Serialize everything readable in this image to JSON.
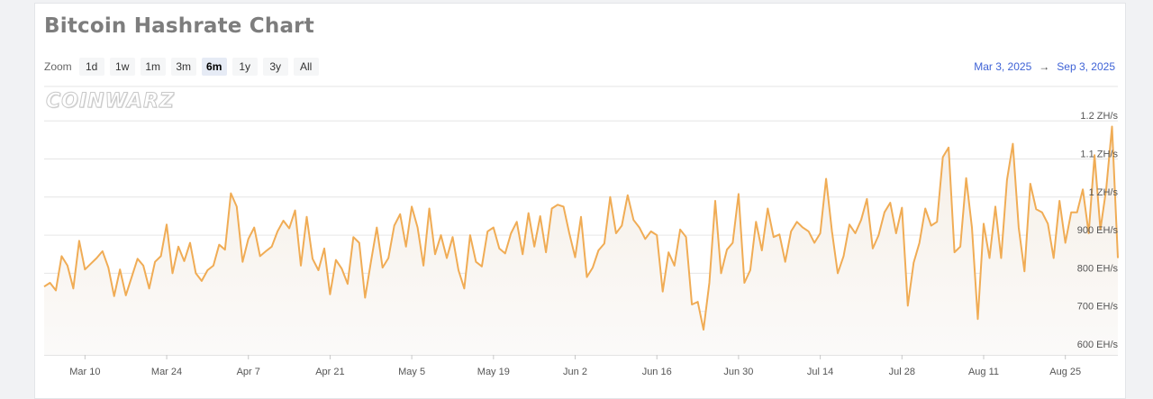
{
  "page": {
    "title": "Bitcoin Hashrate Chart",
    "zoom_label": "Zoom",
    "zoom_options": [
      "1d",
      "1w",
      "1m",
      "3m",
      "6m",
      "1y",
      "3y",
      "All"
    ],
    "zoom_selected": "6m",
    "range_from": "Mar 3, 2025",
    "range_arrow": "→",
    "range_to": "Sep 3, 2025",
    "watermark": "COINWARZ"
  },
  "colors": {
    "line": "#f0ac55",
    "area_top": "#f4eee6",
    "grid": "#e6e6e6",
    "range_text": "#3f63d6"
  },
  "chart_data": {
    "type": "area",
    "title": "Bitcoin Hashrate Chart",
    "x_start": "2025-03-03",
    "x_end": "2025-09-03",
    "xlabel": "",
    "ylabel": "",
    "ylim": [
      600,
      1200
    ],
    "y_ticks": [
      {
        "value": 600,
        "label": "600 EH/s"
      },
      {
        "value": 700,
        "label": "700 EH/s"
      },
      {
        "value": 800,
        "label": "800 EH/s"
      },
      {
        "value": 900,
        "label": "900 EH/s"
      },
      {
        "value": 1000,
        "label": "1 ZH/s"
      },
      {
        "value": 1100,
        "label": "1.1 ZH/s"
      },
      {
        "value": 1200,
        "label": "1.2 ZH/s"
      }
    ],
    "x_ticks": [
      {
        "date": "2025-03-10",
        "label": "Mar 10"
      },
      {
        "date": "2025-03-24",
        "label": "Mar 24"
      },
      {
        "date": "2025-04-07",
        "label": "Apr 7"
      },
      {
        "date": "2025-04-21",
        "label": "Apr 21"
      },
      {
        "date": "2025-05-05",
        "label": "May 5"
      },
      {
        "date": "2025-05-19",
        "label": "May 19"
      },
      {
        "date": "2025-06-02",
        "label": "Jun 2"
      },
      {
        "date": "2025-06-16",
        "label": "Jun 16"
      },
      {
        "date": "2025-06-30",
        "label": "Jun 30"
      },
      {
        "date": "2025-07-14",
        "label": "Jul 14"
      },
      {
        "date": "2025-07-28",
        "label": "Jul 28"
      },
      {
        "date": "2025-08-11",
        "label": "Aug 11"
      },
      {
        "date": "2025-08-25",
        "label": "Aug 25"
      }
    ],
    "grid": true,
    "series": [
      {
        "points": [
          [
            "2025-03-03",
            765
          ],
          [
            "2025-03-04",
            775
          ],
          [
            "2025-03-05",
            755
          ],
          [
            "2025-03-06",
            845
          ],
          [
            "2025-03-07",
            820
          ],
          [
            "2025-03-08",
            760
          ],
          [
            "2025-03-09",
            885
          ],
          [
            "2025-03-10",
            810
          ],
          [
            "2025-03-11",
            825
          ],
          [
            "2025-03-12",
            840
          ],
          [
            "2025-03-13",
            858
          ],
          [
            "2025-03-14",
            815
          ],
          [
            "2025-03-15",
            740
          ],
          [
            "2025-03-16",
            810
          ],
          [
            "2025-03-17",
            742
          ],
          [
            "2025-03-18",
            790
          ],
          [
            "2025-03-19",
            838
          ],
          [
            "2025-03-20",
            820
          ],
          [
            "2025-03-21",
            760
          ],
          [
            "2025-03-22",
            830
          ],
          [
            "2025-03-23",
            845
          ],
          [
            "2025-03-24",
            928
          ],
          [
            "2025-03-25",
            800
          ],
          [
            "2025-03-26",
            870
          ],
          [
            "2025-03-27",
            832
          ],
          [
            "2025-03-28",
            880
          ],
          [
            "2025-03-29",
            800
          ],
          [
            "2025-03-30",
            780
          ],
          [
            "2025-03-31",
            808
          ],
          [
            "2025-04-01",
            820
          ],
          [
            "2025-04-02",
            875
          ],
          [
            "2025-04-03",
            862
          ],
          [
            "2025-04-04",
            1010
          ],
          [
            "2025-04-05",
            975
          ],
          [
            "2025-04-06",
            830
          ],
          [
            "2025-04-07",
            890
          ],
          [
            "2025-04-08",
            920
          ],
          [
            "2025-04-09",
            845
          ],
          [
            "2025-04-10",
            858
          ],
          [
            "2025-04-11",
            870
          ],
          [
            "2025-04-12",
            910
          ],
          [
            "2025-04-13",
            938
          ],
          [
            "2025-04-14",
            918
          ],
          [
            "2025-04-15",
            965
          ],
          [
            "2025-04-16",
            820
          ],
          [
            "2025-04-17",
            948
          ],
          [
            "2025-04-18",
            838
          ],
          [
            "2025-04-19",
            808
          ],
          [
            "2025-04-20",
            865
          ],
          [
            "2025-04-21",
            745
          ],
          [
            "2025-04-22",
            835
          ],
          [
            "2025-04-23",
            812
          ],
          [
            "2025-04-24",
            772
          ],
          [
            "2025-04-25",
            895
          ],
          [
            "2025-04-26",
            880
          ],
          [
            "2025-04-27",
            736
          ],
          [
            "2025-04-28",
            830
          ],
          [
            "2025-04-29",
            920
          ],
          [
            "2025-04-30",
            815
          ],
          [
            "2025-05-01",
            840
          ],
          [
            "2025-05-02",
            925
          ],
          [
            "2025-05-03",
            955
          ],
          [
            "2025-05-04",
            870
          ],
          [
            "2025-05-05",
            975
          ],
          [
            "2025-05-06",
            920
          ],
          [
            "2025-05-07",
            820
          ],
          [
            "2025-05-08",
            970
          ],
          [
            "2025-05-09",
            850
          ],
          [
            "2025-05-10",
            900
          ],
          [
            "2025-05-11",
            840
          ],
          [
            "2025-05-12",
            895
          ],
          [
            "2025-05-13",
            808
          ],
          [
            "2025-05-14",
            760
          ],
          [
            "2025-05-15",
            900
          ],
          [
            "2025-05-16",
            830
          ],
          [
            "2025-05-17",
            818
          ],
          [
            "2025-05-18",
            910
          ],
          [
            "2025-05-19",
            920
          ],
          [
            "2025-05-20",
            865
          ],
          [
            "2025-05-21",
            852
          ],
          [
            "2025-05-22",
            905
          ],
          [
            "2025-05-23",
            935
          ],
          [
            "2025-05-24",
            850
          ],
          [
            "2025-05-25",
            958
          ],
          [
            "2025-05-26",
            870
          ],
          [
            "2025-05-27",
            950
          ],
          [
            "2025-05-28",
            855
          ],
          [
            "2025-05-29",
            970
          ],
          [
            "2025-05-30",
            980
          ],
          [
            "2025-05-31",
            975
          ],
          [
            "2025-06-01",
            905
          ],
          [
            "2025-06-02",
            842
          ],
          [
            "2025-06-03",
            948
          ],
          [
            "2025-06-04",
            790
          ],
          [
            "2025-06-05",
            815
          ],
          [
            "2025-06-06",
            860
          ],
          [
            "2025-06-07",
            878
          ],
          [
            "2025-06-08",
            1000
          ],
          [
            "2025-06-09",
            905
          ],
          [
            "2025-06-10",
            925
          ],
          [
            "2025-06-11",
            1005
          ],
          [
            "2025-06-12",
            940
          ],
          [
            "2025-06-13",
            920
          ],
          [
            "2025-06-14",
            890
          ],
          [
            "2025-06-15",
            910
          ],
          [
            "2025-06-16",
            900
          ],
          [
            "2025-06-17",
            752
          ],
          [
            "2025-06-18",
            855
          ],
          [
            "2025-06-19",
            820
          ],
          [
            "2025-06-20",
            915
          ],
          [
            "2025-06-21",
            895
          ],
          [
            "2025-06-22",
            718
          ],
          [
            "2025-06-23",
            725
          ],
          [
            "2025-06-24",
            652
          ],
          [
            "2025-06-25",
            775
          ],
          [
            "2025-06-26",
            990
          ],
          [
            "2025-06-27",
            800
          ],
          [
            "2025-06-28",
            862
          ],
          [
            "2025-06-29",
            880
          ],
          [
            "2025-06-30",
            1008
          ],
          [
            "2025-07-01",
            775
          ],
          [
            "2025-07-02",
            808
          ],
          [
            "2025-07-03",
            935
          ],
          [
            "2025-07-04",
            860
          ],
          [
            "2025-07-05",
            970
          ],
          [
            "2025-07-06",
            895
          ],
          [
            "2025-07-07",
            902
          ],
          [
            "2025-07-08",
            830
          ],
          [
            "2025-07-09",
            910
          ],
          [
            "2025-07-10",
            935
          ],
          [
            "2025-07-11",
            920
          ],
          [
            "2025-07-12",
            910
          ],
          [
            "2025-07-13",
            880
          ],
          [
            "2025-07-14",
            905
          ],
          [
            "2025-07-15",
            1048
          ],
          [
            "2025-07-16",
            910
          ],
          [
            "2025-07-17",
            800
          ],
          [
            "2025-07-18",
            845
          ],
          [
            "2025-07-19",
            928
          ],
          [
            "2025-07-20",
            905
          ],
          [
            "2025-07-21",
            940
          ],
          [
            "2025-07-22",
            995
          ],
          [
            "2025-07-23",
            865
          ],
          [
            "2025-07-24",
            900
          ],
          [
            "2025-07-25",
            960
          ],
          [
            "2025-07-26",
            985
          ],
          [
            "2025-07-27",
            905
          ],
          [
            "2025-07-28",
            972
          ],
          [
            "2025-07-29",
            715
          ],
          [
            "2025-07-30",
            828
          ],
          [
            "2025-07-31",
            880
          ],
          [
            "2025-08-01",
            970
          ],
          [
            "2025-08-02",
            925
          ],
          [
            "2025-08-03",
            935
          ],
          [
            "2025-08-04",
            1105
          ],
          [
            "2025-08-05",
            1130
          ],
          [
            "2025-08-06",
            855
          ],
          [
            "2025-08-07",
            870
          ],
          [
            "2025-08-08",
            1050
          ],
          [
            "2025-08-09",
            920
          ],
          [
            "2025-08-10",
            680
          ],
          [
            "2025-08-11",
            930
          ],
          [
            "2025-08-12",
            840
          ],
          [
            "2025-08-13",
            975
          ],
          [
            "2025-08-14",
            840
          ],
          [
            "2025-08-15",
            1045
          ],
          [
            "2025-08-16",
            1140
          ],
          [
            "2025-08-17",
            920
          ],
          [
            "2025-08-18",
            805
          ],
          [
            "2025-08-19",
            1035
          ],
          [
            "2025-08-20",
            968
          ],
          [
            "2025-08-21",
            960
          ],
          [
            "2025-08-22",
            930
          ],
          [
            "2025-08-23",
            840
          ],
          [
            "2025-08-24",
            990
          ],
          [
            "2025-08-25",
            880
          ],
          [
            "2025-08-26",
            960
          ],
          [
            "2025-08-27",
            960
          ],
          [
            "2025-08-28",
            1020
          ],
          [
            "2025-08-29",
            905
          ],
          [
            "2025-08-30",
            1110
          ],
          [
            "2025-08-31",
            915
          ],
          [
            "2025-09-01",
            1020
          ],
          [
            "2025-09-02",
            1185
          ],
          [
            "2025-09-03",
            840
          ]
        ]
      }
    ]
  }
}
